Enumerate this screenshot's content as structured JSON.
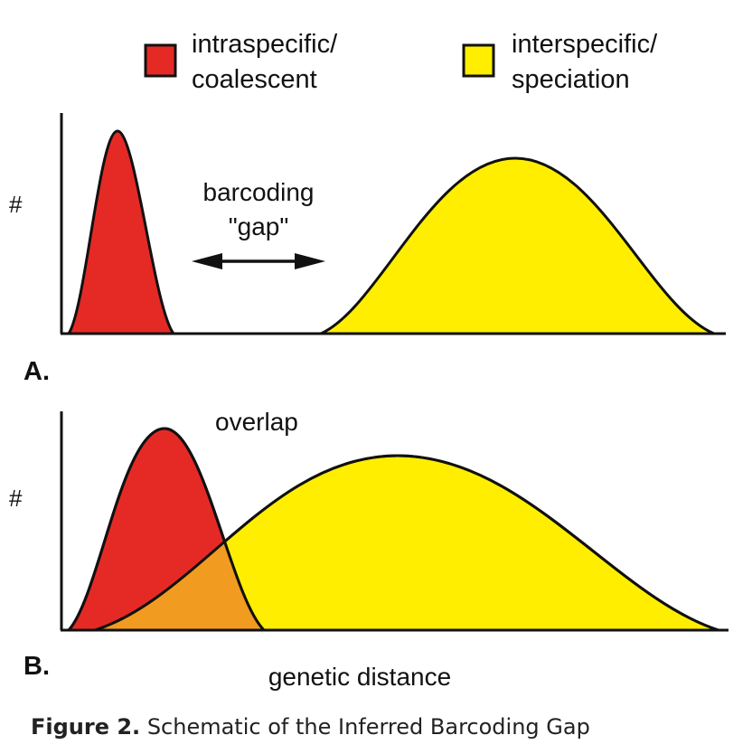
{
  "legend": {
    "red": {
      "line1": "intraspecific/",
      "line2": "coalescent",
      "color": "#e52a25"
    },
    "yellow": {
      "line1": "interspecific/",
      "line2": "speciation",
      "color": "#ffee00"
    }
  },
  "overlap_color": "#f29b21",
  "panel_a": {
    "label": "A.",
    "y_label": "#",
    "gap_line1": "barcoding",
    "gap_line2": "\"gap\""
  },
  "panel_b": {
    "label": "B.",
    "y_label": "#",
    "overlap_label": "overlap"
  },
  "x_label": "genetic distance",
  "caption": {
    "label": "Figure 2.",
    "text": "Schematic of the Inferred Barcoding Gap"
  }
}
